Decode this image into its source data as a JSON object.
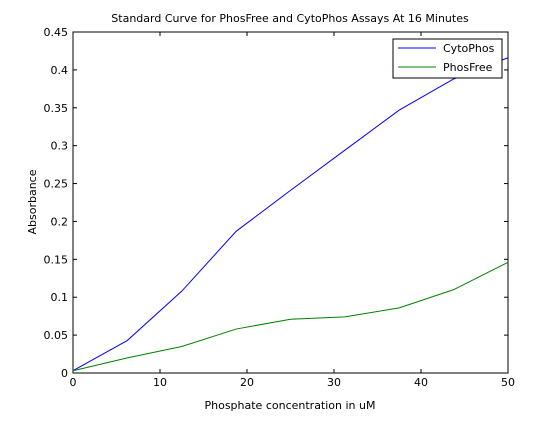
{
  "chart_data": {
    "type": "line",
    "title": "Standard Curve for PhosFree and CytoPhos Assays At 16 Minutes",
    "xlabel": "Phosphate concentration in uM",
    "ylabel": "Absorbance",
    "xlim": [
      0,
      50
    ],
    "ylim": [
      0,
      0.45
    ],
    "xticks": [
      "0",
      "10",
      "20",
      "30",
      "40",
      "50"
    ],
    "yticks": [
      "0",
      "0.05",
      "0.1",
      "0.15",
      "0.2",
      "0.25",
      "0.3",
      "0.35",
      "0.4",
      "0.45"
    ],
    "grid": false,
    "legend_position": "top-right",
    "series": [
      {
        "name": "CytoPhos",
        "color": "#0000ff",
        "x": [
          0,
          6.25,
          12.5,
          18.75,
          25,
          31.25,
          37.5,
          43.75,
          50
        ],
        "y": [
          0.003,
          0.043,
          0.108,
          0.187,
          0.241,
          0.294,
          0.347,
          0.388,
          0.416
        ]
      },
      {
        "name": "PhosFree",
        "color": "#008000",
        "x": [
          0,
          6.25,
          12.5,
          18.75,
          25,
          31.25,
          37.5,
          43.75,
          50
        ],
        "y": [
          0.003,
          0.02,
          0.035,
          0.058,
          0.071,
          0.074,
          0.086,
          0.11,
          0.146
        ]
      }
    ]
  }
}
